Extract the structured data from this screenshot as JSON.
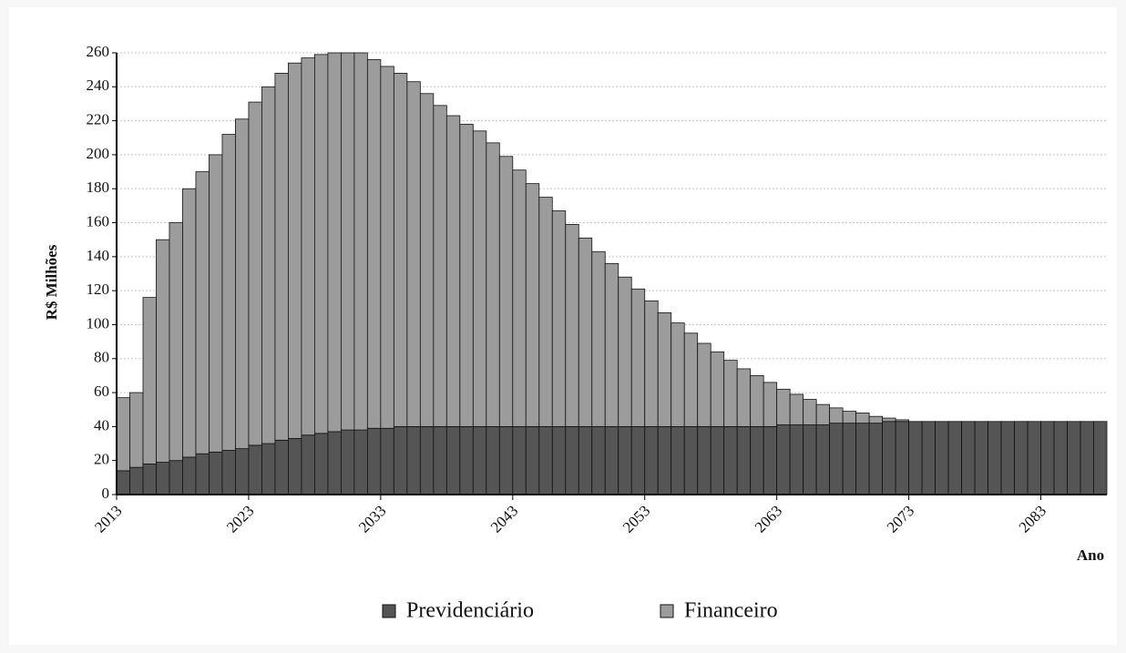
{
  "chart_data": {
    "type": "stacked_bar",
    "ylabel": "R$ Milhões",
    "xlabel": "Ano",
    "categories": [
      "2013",
      null,
      null,
      null,
      null,
      null,
      null,
      null,
      null,
      null,
      "2023",
      null,
      null,
      null,
      null,
      null,
      null,
      null,
      null,
      null,
      "2033",
      null,
      null,
      null,
      null,
      null,
      null,
      null,
      null,
      null,
      "2043",
      null,
      null,
      null,
      null,
      null,
      null,
      null,
      null,
      null,
      "2053",
      null,
      null,
      null,
      null,
      null,
      null,
      null,
      null,
      null,
      "2063",
      null,
      null,
      null,
      null,
      null,
      null,
      null,
      null,
      null,
      "2073",
      null,
      null,
      null,
      null,
      null,
      null,
      null,
      null,
      null,
      "2083",
      null,
      null,
      null,
      null
    ],
    "series": [
      {
        "name": "Previdenciário",
        "color": "#555555",
        "values": [
          14,
          16,
          18,
          19,
          20,
          22,
          24,
          25,
          26,
          27,
          29,
          30,
          32,
          33,
          35,
          36,
          37,
          38,
          38,
          39,
          39,
          40,
          40,
          40,
          40,
          40,
          40,
          40,
          40,
          40,
          40,
          40,
          40,
          40,
          40,
          40,
          40,
          40,
          40,
          40,
          40,
          40,
          40,
          40,
          40,
          40,
          40,
          40,
          40,
          40,
          41,
          41,
          41,
          41,
          42,
          42,
          42,
          42,
          43,
          43,
          43,
          43,
          43,
          43,
          43,
          43,
          43,
          43,
          43,
          43,
          43,
          43,
          43,
          43,
          43
        ]
      },
      {
        "name": "Financeiro",
        "color": "#9c9c9c",
        "values": [
          43,
          44,
          98,
          131,
          140,
          158,
          166,
          175,
          186,
          194,
          202,
          210,
          216,
          221,
          222,
          223,
          223,
          222,
          222,
          217,
          213,
          208,
          203,
          196,
          189,
          183,
          178,
          174,
          167,
          159,
          151,
          143,
          135,
          127,
          119,
          111,
          103,
          96,
          88,
          81,
          74,
          67,
          61,
          55,
          49,
          44,
          39,
          34,
          30,
          26,
          21,
          18,
          15,
          12,
          9,
          7,
          6,
          4,
          2,
          1,
          0,
          0,
          0,
          0,
          0,
          0,
          0,
          0,
          0,
          0,
          0,
          0,
          0,
          0,
          0
        ]
      }
    ],
    "ylim": [
      0,
      260
    ],
    "yticks": [
      0,
      20,
      40,
      60,
      80,
      100,
      120,
      140,
      160,
      180,
      200,
      220,
      240,
      260
    ],
    "grid": true
  }
}
